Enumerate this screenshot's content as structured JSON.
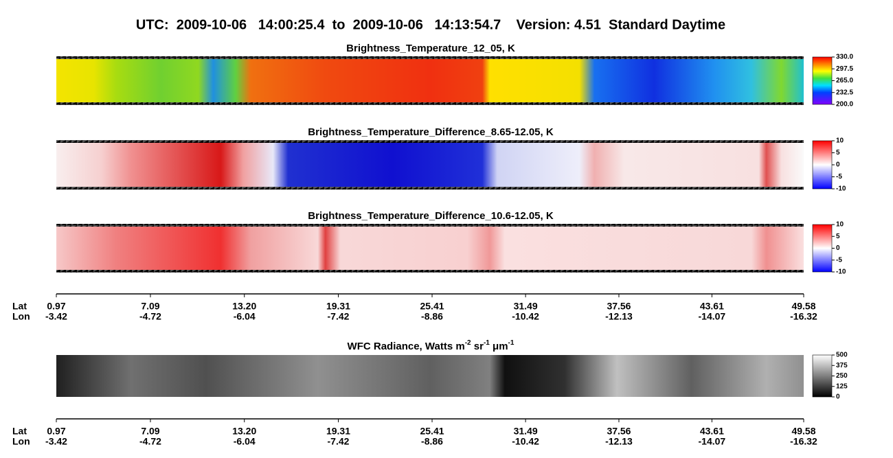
{
  "title": "UTC:  2009-10-06   14:00:25.4  to  2009-10-06   14:13:54.7    Version: 4.51  Standard Daytime",
  "panels": [
    {
      "title": [
        {
          "text": "Brightness_Temperature_12_05, K",
          "sup": false
        }
      ],
      "clim": [
        200,
        330
      ],
      "ticks": [
        {
          "value": 330,
          "label": "330.0"
        },
        {
          "value": 297.5,
          "label": "297.5"
        },
        {
          "value": 265,
          "label": "265.0"
        },
        {
          "value": 232.5,
          "label": "232.5"
        },
        {
          "value": 200,
          "label": "200.0"
        }
      ]
    },
    {
      "title": [
        {
          "text": "Brightness_Temperature_Difference_8.65-12.05, K",
          "sup": false
        }
      ],
      "clim": [
        -10,
        10
      ],
      "ticks": [
        10,
        5,
        0,
        -5,
        -10
      ]
    },
    {
      "title": [
        {
          "text": "Brightness_Temperature_Difference_10.6-12.05, K",
          "sup": false
        }
      ],
      "clim": [
        -10,
        10
      ],
      "ticks": [
        10,
        5,
        0,
        -5,
        -10
      ]
    },
    {
      "title": [
        {
          "text": "WFC Radiance, Watts m",
          "sup": false
        },
        {
          "text": "-2",
          "sup": true
        },
        {
          "text": " sr",
          "sup": false
        },
        {
          "text": "-1",
          "sup": true
        },
        {
          "text": " μm",
          "sup": false
        },
        {
          "text": "-1",
          "sup": true
        }
      ],
      "clim": [
        0,
        500
      ],
      "ticks": [
        500,
        375,
        250,
        125,
        0
      ]
    }
  ],
  "track": {
    "lat_label": "Lat",
    "lon_label": "Lon",
    "xlim": [
      0.97,
      49.58
    ],
    "lat": [
      0.97,
      7.09,
      {
        "value": 13.2,
        "label": "13.20"
      },
      19.31,
      25.41,
      31.49,
      37.56,
      43.61,
      49.58
    ],
    "lon": [
      -3.42,
      -4.72,
      -6.04,
      -7.42,
      -8.86,
      -10.42,
      -12.13,
      -14.07,
      -16.32
    ]
  }
}
